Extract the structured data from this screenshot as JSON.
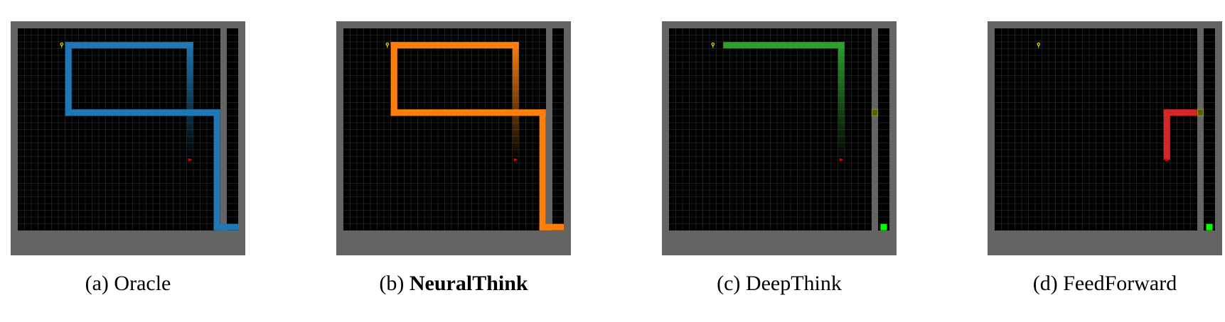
{
  "figure": {
    "grid_size": 30,
    "colors": {
      "frame": "#646464",
      "floor": "#000000",
      "gridline": "#262626",
      "key": "#f0e000",
      "agent": "#e00000",
      "goal": "#00ff00",
      "door": "#5a5a00"
    },
    "panels": [
      {
        "id": "oracle",
        "caption_prefix": "(a)",
        "caption_name": "Oracle",
        "bold": false,
        "path_color": "#1f77b4",
        "trajectory": [
          [
            25,
            19
          ],
          [
            25,
            2
          ],
          [
            7,
            2
          ],
          [
            7,
            12
          ],
          [
            29,
            12
          ],
          [
            29,
            29
          ]
        ],
        "fade_start": true,
        "show_goal": false,
        "show_door": false
      },
      {
        "id": "neuralthink",
        "caption_prefix": "(b)",
        "caption_name": "NeuralThink",
        "bold": true,
        "path_color": "#ff7f0e",
        "trajectory": [
          [
            25,
            19
          ],
          [
            25,
            2
          ],
          [
            7,
            2
          ],
          [
            7,
            12
          ],
          [
            29,
            12
          ],
          [
            29,
            29
          ]
        ],
        "fade_start": true,
        "show_goal": false,
        "show_door": false
      },
      {
        "id": "deepthink",
        "caption_prefix": "(c)",
        "caption_name": "DeepThink",
        "bold": false,
        "path_color": "#2ca02c",
        "trajectory": [
          [
            25,
            19
          ],
          [
            25,
            2
          ],
          [
            8,
            2
          ]
        ],
        "fade_start": true,
        "show_goal": true,
        "show_door": true
      },
      {
        "id": "feedforward",
        "caption_prefix": "(d)",
        "caption_name": "FeedForward",
        "bold": false,
        "path_color": "#d62728",
        "trajectory": [
          [
            25,
            19
          ],
          [
            25,
            12
          ],
          [
            29,
            12
          ]
        ],
        "fade_start": false,
        "show_goal": true,
        "show_door": true
      }
    ],
    "cells": {
      "key": [
        6,
        2
      ],
      "agent": [
        25,
        19
      ],
      "door": [
        29,
        12
      ],
      "goal": [
        31,
        29
      ]
    }
  }
}
